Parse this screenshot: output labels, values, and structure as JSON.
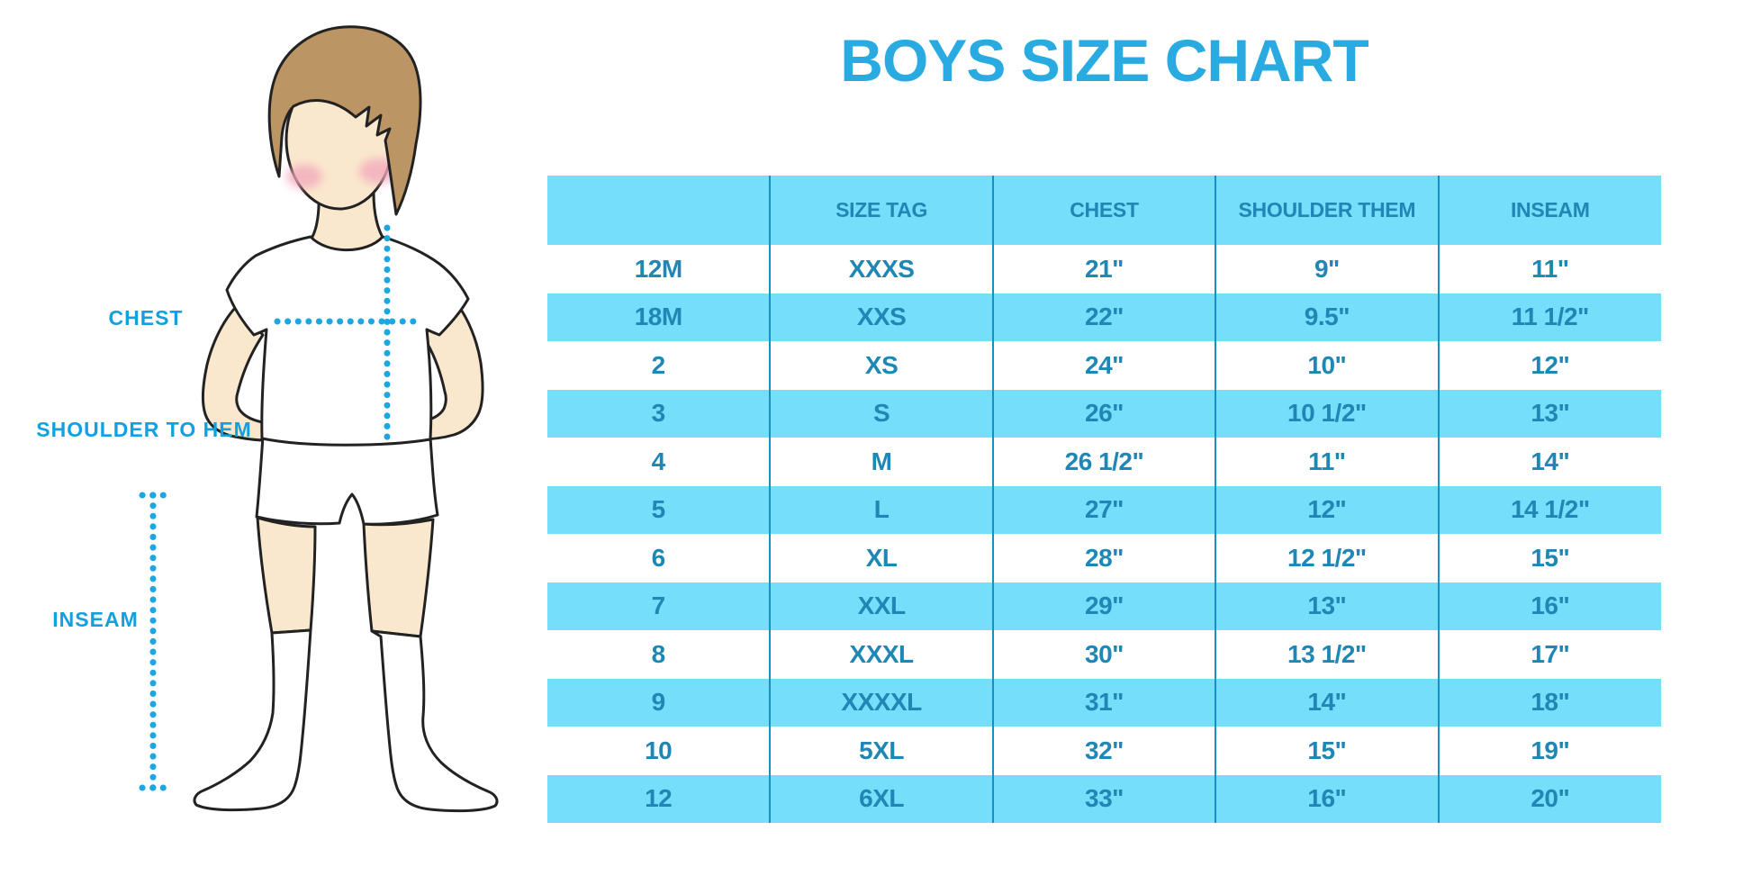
{
  "chart_data": {
    "type": "table",
    "title": "BOYS SIZE CHART",
    "columns": [
      "",
      "SIZE TAG",
      "CHEST",
      "SHOULDER THEM",
      "INSEAM"
    ],
    "rows": [
      [
        "12M",
        "XXXS",
        "21\"",
        "9\"",
        "11\""
      ],
      [
        "18M",
        "XXS",
        "22\"",
        "9.5\"",
        "11 1/2\""
      ],
      [
        "2",
        "XS",
        "24\"",
        "10\"",
        "12\""
      ],
      [
        "3",
        "S",
        "26\"",
        "10 1/2\"",
        "13\""
      ],
      [
        "4",
        "M",
        "26 1/2\"",
        "11\"",
        "14\""
      ],
      [
        "5",
        "L",
        "27\"",
        "12\"",
        "14 1/2\""
      ],
      [
        "6",
        "XL",
        "28\"",
        "12 1/2\"",
        "15\""
      ],
      [
        "7",
        "XXL",
        "29\"",
        "13\"",
        "16\""
      ],
      [
        "8",
        "XXXL",
        "30\"",
        "13 1/2\"",
        "17\""
      ],
      [
        "9",
        "XXXXL",
        "31\"",
        "14\"",
        "18\""
      ],
      [
        "10",
        "5XL",
        "32\"",
        "15\"",
        "19\""
      ],
      [
        "12",
        "6XL",
        "33\"",
        "16\"",
        "20\""
      ]
    ],
    "layout": {
      "stripe_pattern": "header and even rows light blue, odd rows white",
      "grid": "vertical column dividers only"
    }
  },
  "figure": {
    "description": "cartoon boy in white t-shirt, shorts and knee socks with dotted measurement guides",
    "labels": {
      "chest": "CHEST",
      "shoulder_to_hem": "SHOULDER TO HEM",
      "inseam": "INSEAM"
    }
  },
  "colors": {
    "title_blue": "#29ABE2",
    "label_blue": "#12A0DF",
    "row_stripe_blue": "#74DEFB",
    "table_text_blue": "#1E87B5",
    "column_divider_blue": "#1591C1",
    "dotted_line_blue": "#1CA7E2",
    "skin": "#FAE8CE",
    "hair_brown": "#BC9565",
    "blush_pink": "#F2A9BC",
    "outline_black": "#222222",
    "background": "#FFFFFF"
  }
}
